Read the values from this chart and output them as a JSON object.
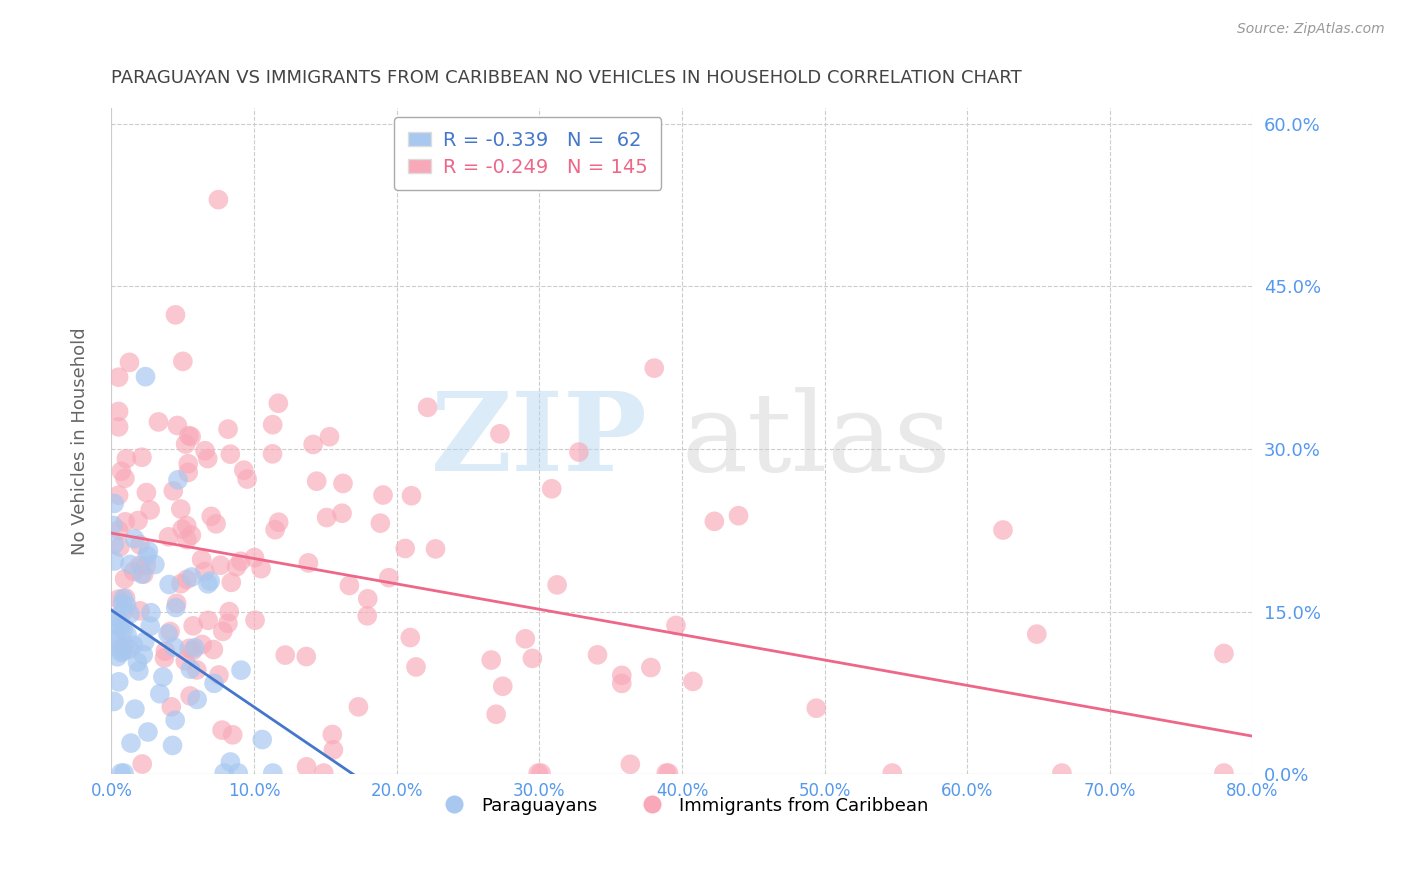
{
  "title": "PARAGUAYAN VS IMMIGRANTS FROM CARIBBEAN NO VEHICLES IN HOUSEHOLD CORRELATION CHART",
  "source": "Source: ZipAtlas.com",
  "ylabel": "No Vehicles in Household",
  "series1_label": "Paraguayans",
  "series2_label": "Immigrants from Caribbean",
  "R1": -0.339,
  "N1": 62,
  "R2": -0.249,
  "N2": 145,
  "color1": "#a8c8f0",
  "color2": "#f8a8b8",
  "line1_color": "#4477cc",
  "line2_color": "#ee6688",
  "xlim": [
    0.0,
    0.8
  ],
  "ylim": [
    0.0,
    0.615
  ],
  "yticks": [
    0.0,
    0.15,
    0.3,
    0.45,
    0.6
  ],
  "xticks": [
    0.0,
    0.1,
    0.2,
    0.3,
    0.4,
    0.5,
    0.6,
    0.7,
    0.8
  ],
  "background_color": "#ffffff",
  "grid_color": "#cccccc",
  "title_color": "#444444",
  "axis_label_color": "#666666",
  "tick_label_color": "#5599ee",
  "figsize": [
    14.06,
    8.92
  ],
  "dpi": 100
}
